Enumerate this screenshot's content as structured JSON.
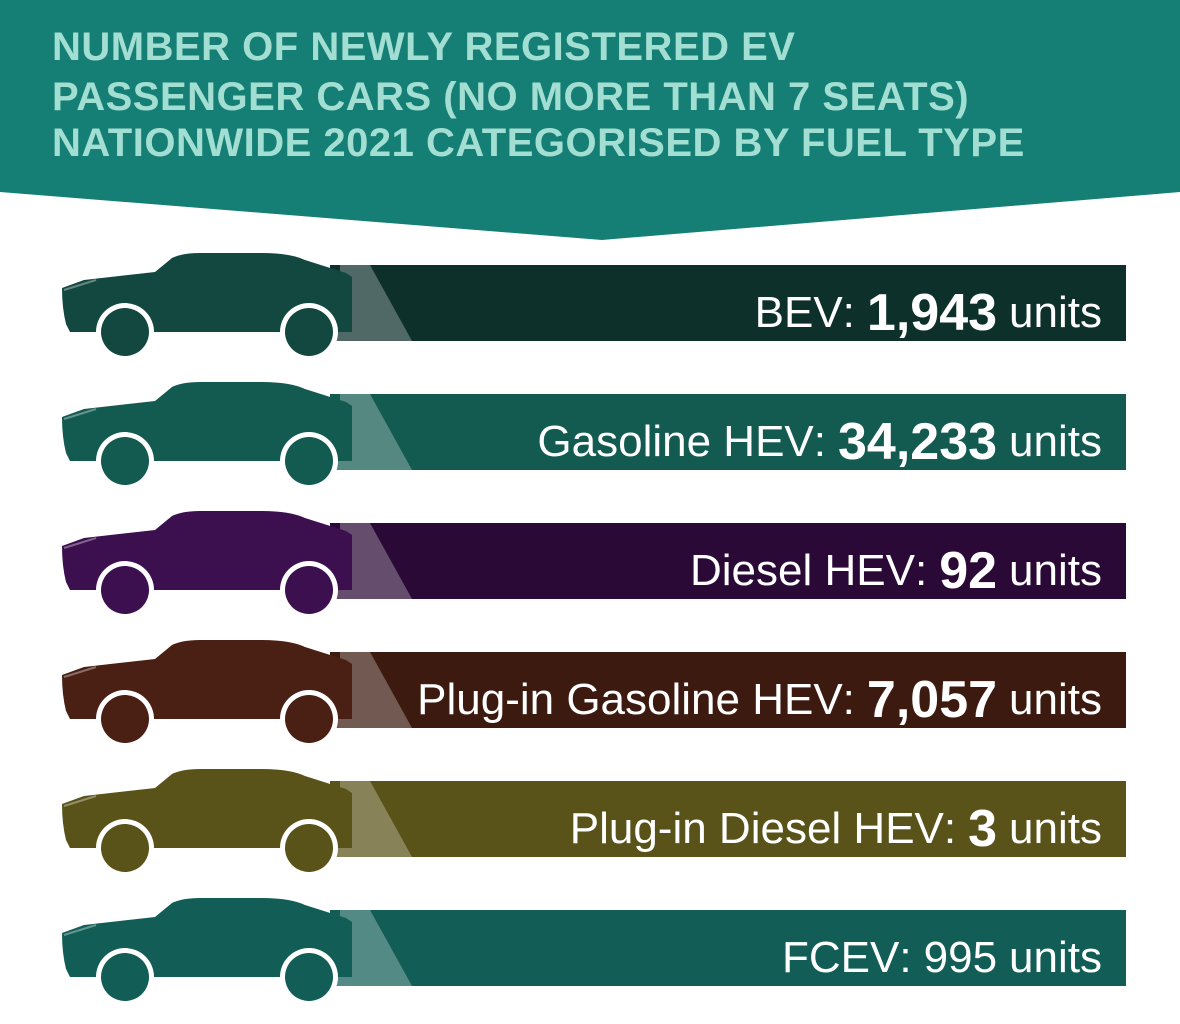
{
  "title": {
    "line1": "NUMBER OF NEWLY REGISTERED EV",
    "line2": "PASSENGER CARS (NO MORE THAN 7 SEATS)",
    "line3": "NATIONWIDE 2021 CATEGORISED BY FUEL TYPE"
  },
  "colors": {
    "header": "#157f75",
    "title_text": "#a3ded3"
  },
  "chart_data": {
    "type": "bar",
    "title": "NUMBER OF NEWLY REGISTERED EV PASSENGER CARS (NO MORE THAN 7 SEATS) NATIONWIDE 2021 CATEGORISED BY FUEL TYPE",
    "categories": [
      "BEV",
      "Gasoline HEV",
      "Diesel HEV",
      "Plug-in Gasoline HEV",
      "Plug-in Diesel HEV",
      "FCEV"
    ],
    "values": [
      1943,
      34233,
      92,
      7057,
      3,
      995
    ],
    "unit": "units",
    "bars": [
      {
        "category": "BEV",
        "value_text": "1,943",
        "unit": "units",
        "bold_value": true,
        "bar_color": "#0e302b",
        "car_color": "#134840"
      },
      {
        "category": "Gasoline HEV",
        "value_text": "34,233",
        "unit": "units",
        "bold_value": true,
        "bar_color": "#135a51",
        "car_color": "#135a51"
      },
      {
        "category": "Diesel HEV",
        "value_text": "92",
        "unit": "units",
        "bold_value": true,
        "bar_color": "#2a0936",
        "car_color": "#3c0f4f"
      },
      {
        "category": "Plug-in Gasoline HEV",
        "value_text": "7,057",
        "unit": "units",
        "bold_value": true,
        "bar_color": "#3c1a10",
        "car_color": "#4a2015"
      },
      {
        "category": "Plug-in Diesel HEV",
        "value_text": "3",
        "unit": "units",
        "bold_value": true,
        "bar_color": "#5a5319",
        "car_color": "#5a5319"
      },
      {
        "category": "FCEV",
        "value_text": "995",
        "unit": "units",
        "bold_value": false,
        "bar_color": "#125e56",
        "car_color": "#125e56"
      }
    ]
  }
}
